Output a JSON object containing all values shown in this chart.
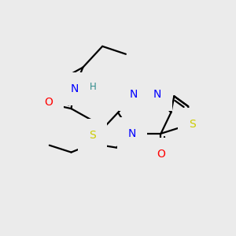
{
  "bg_color": "#ebebeb",
  "bond_color": "#000000",
  "bond_width": 1.6,
  "atom_colors": {
    "N": "#0000ff",
    "O": "#ff0000",
    "S": "#cccc00",
    "H": "#2e8b8b",
    "C": "#000000"
  },
  "font_size": 10,
  "font_size_H": 8.5
}
